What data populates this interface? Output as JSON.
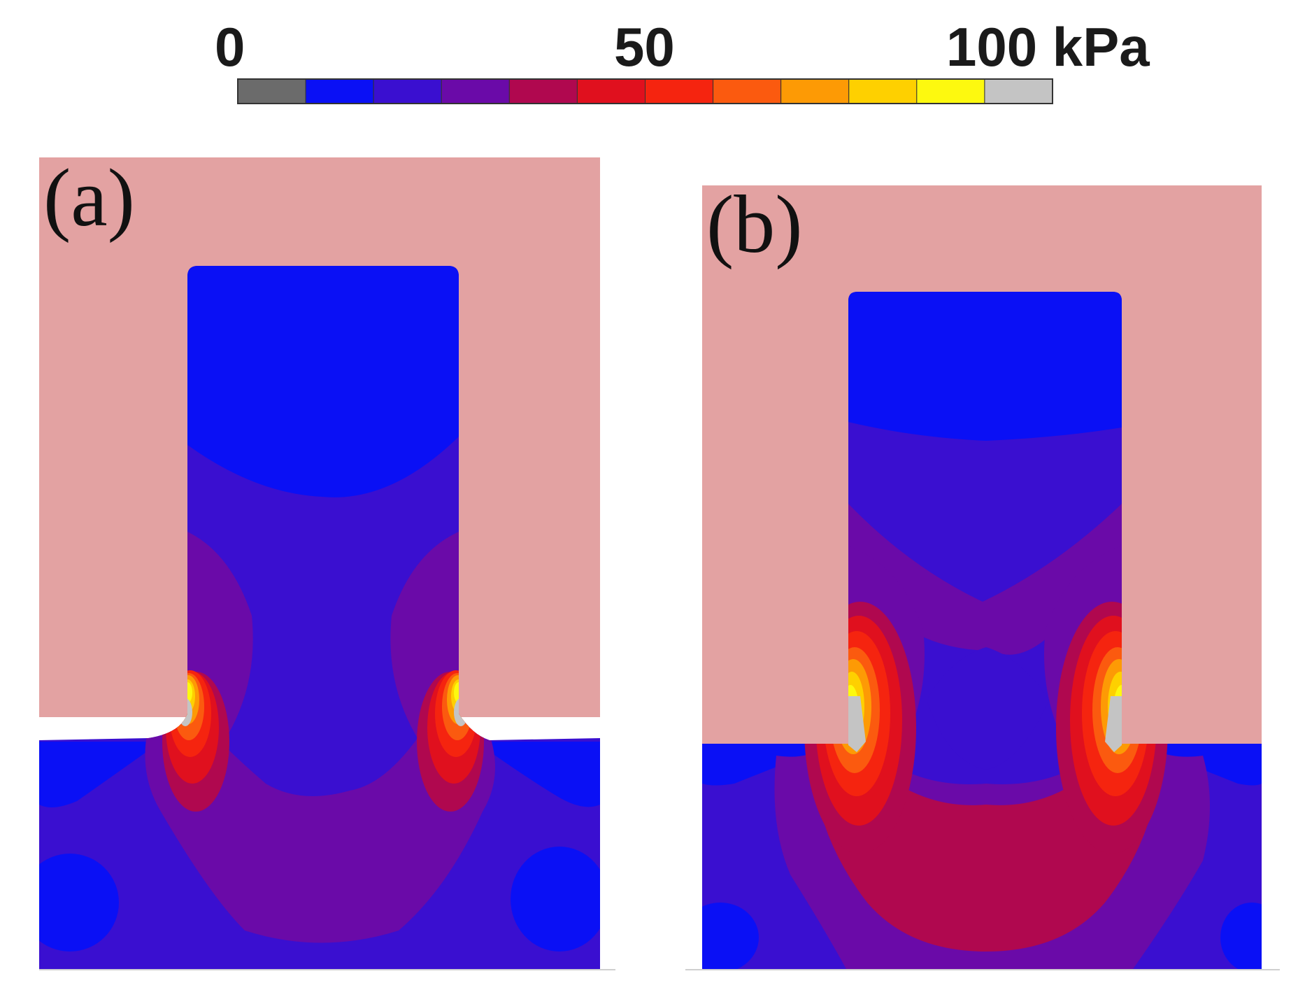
{
  "figure": {
    "colorbar": {
      "tick_labels": [
        "0",
        "50",
        "100 kPa"
      ],
      "colors": [
        "#6b6b6b",
        "#0a10f5",
        "#3a0fd0",
        "#6a0aa8",
        "#b0084f",
        "#e0101e",
        "#f5240f",
        "#fb5a0f",
        "#fd9a05",
        "#fed000",
        "#fdf90f",
        "#c4c4c4"
      ]
    },
    "panels": [
      {
        "label": "(a)"
      },
      {
        "label": "(b)"
      }
    ],
    "palette": {
      "pink": "#e3a2a2",
      "blue": "#0a10f5",
      "indigo": "#3a0fd0",
      "purple": "#6a0aa8",
      "crimson": "#b0084f",
      "red": "#e0101e",
      "redorange": "#f5240f",
      "orange": "#fb5a0f",
      "amber": "#fd9a05",
      "gold": "#fed000",
      "yellow": "#fdf90f",
      "grey": "#c4c4c4"
    }
  }
}
